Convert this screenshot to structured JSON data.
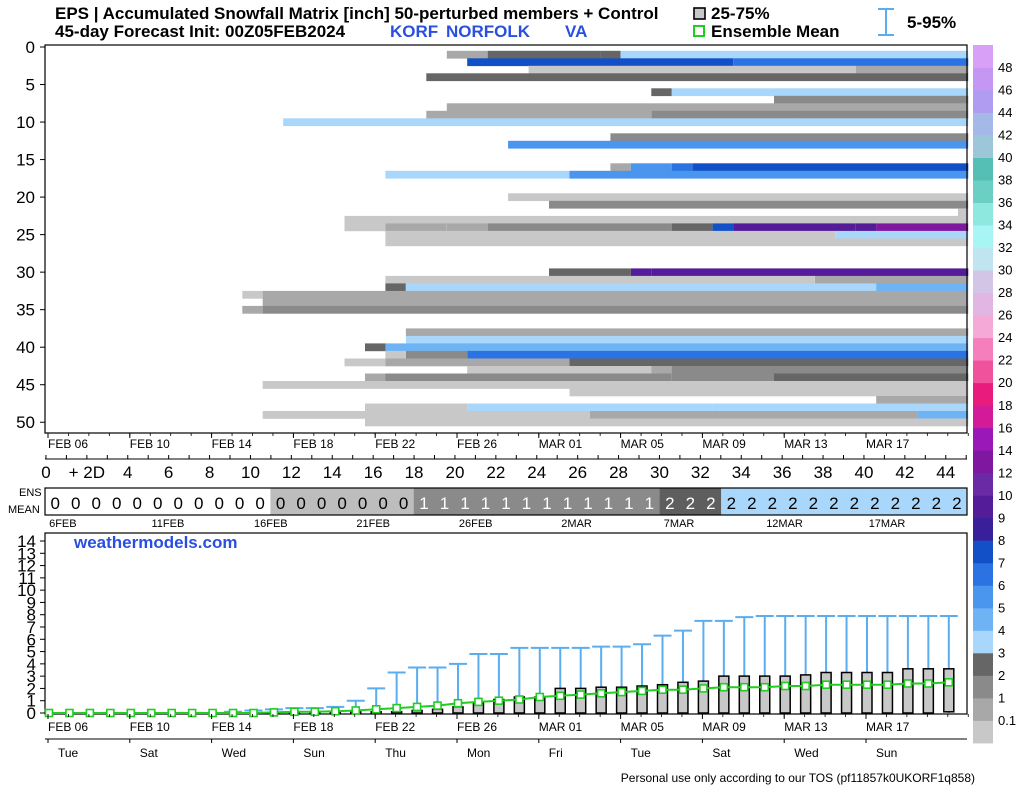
{
  "header": {
    "line1": "EPS | Accumulated Snowfall Matrix [inch]  50-perturbed members + Control",
    "line2_prefix": "45-day Forecast Init: 00Z05FEB2024",
    "station_id": "KORF",
    "station_name": "NORFOLK",
    "state": "VA",
    "legend_iqr": "25-75%",
    "legend_mean": "Ensemble Mean",
    "legend_whisker": "5-95%"
  },
  "watermark": "weathermodels.com",
  "footer": "Personal use only according to our TOS (pf11857k0UKORF1q858)",
  "colors": {
    "whisker": "#5aaef0",
    "mean": "#22cc22",
    "box": "#c8c8c8",
    "station": "#2a4fe0"
  },
  "chart_data": [
    {
      "id": "matrix",
      "type": "heatmap",
      "title": "Accumulated Snowfall Matrix [inch]",
      "ylim": [
        0,
        50
      ],
      "yticks": [
        0,
        5,
        10,
        15,
        20,
        25,
        30,
        35,
        40,
        45,
        50
      ],
      "xlim": [
        0,
        45
      ],
      "date_ticks": [
        {
          "d": 1,
          "label": "FEB 06"
        },
        {
          "d": 5,
          "label": "FEB 10"
        },
        {
          "d": 9,
          "label": "FEB 14"
        },
        {
          "d": 13,
          "label": "FEB 18"
        },
        {
          "d": 17,
          "label": "FEB 22"
        },
        {
          "d": 21,
          "label": "FEB 26"
        },
        {
          "d": 25,
          "label": "MAR 01"
        },
        {
          "d": 29,
          "label": "MAR 05"
        },
        {
          "d": 33,
          "label": "MAR 09"
        },
        {
          "d": 37,
          "label": "MAR 13"
        },
        {
          "d": 41,
          "label": "MAR 17"
        }
      ],
      "members": [
        {
          "m": 1,
          "cells": [
            [
              19.5,
              21.5,
              1.5
            ],
            [
              21.5,
              27,
              3
            ],
            [
              27,
              28,
              3.5
            ],
            [
              28,
              45,
              4.5
            ]
          ]
        },
        {
          "m": 2,
          "cells": [
            [
              20.5,
              33.5,
              8
            ],
            [
              33.5,
              45,
              7.5
            ]
          ]
        },
        {
          "m": 3,
          "cells": [
            [
              23.5,
              39.5,
              0.5
            ],
            [
              39.5,
              45,
              1.5
            ]
          ]
        },
        {
          "m": 4,
          "cells": [
            [
              18.5,
              45,
              3
            ]
          ]
        },
        {
          "m": 6,
          "cells": [
            [
              29.5,
              30.5,
              3
            ],
            [
              30.5,
              45,
              4.5
            ]
          ]
        },
        {
          "m": 7,
          "cells": [
            [
              35.5,
              45,
              2
            ]
          ]
        },
        {
          "m": 8,
          "cells": [
            [
              19.5,
              45,
              1.5
            ]
          ]
        },
        {
          "m": 9,
          "cells": [
            [
              18.5,
              29.5,
              1
            ],
            [
              29.5,
              45,
              2
            ]
          ]
        },
        {
          "m": 10,
          "cells": [
            [
              11.5,
              36.5,
              4
            ],
            [
              36.5,
              45,
              4.5
            ]
          ]
        },
        {
          "m": 12,
          "cells": [
            [
              27.5,
              45,
              2
            ]
          ]
        },
        {
          "m": 13,
          "cells": [
            [
              22.5,
              45,
              6
            ]
          ]
        },
        {
          "m": 16,
          "cells": [
            [
              27.5,
              28.5,
              1.5
            ],
            [
              28.5,
              30.5,
              6
            ],
            [
              30.5,
              31.5,
              7.5
            ],
            [
              31.5,
              45,
              8
            ]
          ]
        },
        {
          "m": 17,
          "cells": [
            [
              16.5,
              25.5,
              4.5
            ],
            [
              25.5,
              45,
              6
            ]
          ]
        },
        {
          "m": 20,
          "cells": [
            [
              22.5,
              45,
              0.5
            ]
          ]
        },
        {
          "m": 21,
          "cells": [
            [
              24.5,
              45,
              2
            ]
          ]
        },
        {
          "m": 22,
          "cells": [
            [
              44.5,
              45,
              0.5
            ]
          ]
        },
        {
          "m": 23,
          "cells": [
            [
              14.5,
              45,
              0.5
            ]
          ]
        },
        {
          "m": 24,
          "cells": [
            [
              14.5,
              16.5,
              0.5
            ],
            [
              16.5,
              19.5,
              1
            ],
            [
              19.5,
              21.5,
              1.5
            ],
            [
              21.5,
              30.5,
              2
            ],
            [
              30.5,
              32.5,
              3
            ],
            [
              32.5,
              33.5,
              8
            ],
            [
              33.5,
              39.5,
              10
            ],
            [
              39.5,
              40.5,
              11
            ],
            [
              40.5,
              45,
              14
            ]
          ]
        },
        {
          "m": 25,
          "cells": [
            [
              16.5,
              38.5,
              0.5
            ],
            [
              38.5,
              45,
              4.5
            ]
          ]
        },
        {
          "m": 26,
          "cells": [
            [
              16.5,
              45,
              0.5
            ]
          ]
        },
        {
          "m": 30,
          "cells": [
            [
              24.5,
              28.5,
              3
            ],
            [
              28.5,
              29.5,
              10
            ],
            [
              29.5,
              45,
              10
            ]
          ]
        },
        {
          "m": 31,
          "cells": [
            [
              16.5,
              37.5,
              0.5
            ],
            [
              37.5,
              45,
              1.5
            ]
          ]
        },
        {
          "m": 32,
          "cells": [
            [
              16.5,
              17.5,
              3
            ],
            [
              17.5,
              40.5,
              4.5
            ],
            [
              40.5,
              45,
              5
            ]
          ]
        },
        {
          "m": 33,
          "cells": [
            [
              9.5,
              10.5,
              0.5
            ],
            [
              10.5,
              45,
              1
            ]
          ]
        },
        {
          "m": 34,
          "cells": [
            [
              10.5,
              45,
              1
            ]
          ]
        },
        {
          "m": 35,
          "cells": [
            [
              9.5,
              10.5,
              1.5
            ],
            [
              10.5,
              45,
              2
            ]
          ]
        },
        {
          "m": 38,
          "cells": [
            [
              17.5,
              45,
              1.5
            ]
          ]
        },
        {
          "m": 39,
          "cells": [
            [
              17.5,
              45,
              4.5
            ]
          ]
        },
        {
          "m": 40,
          "cells": [
            [
              15.5,
              16.5,
              3
            ],
            [
              16.5,
              45,
              5
            ]
          ]
        },
        {
          "m": 41,
          "cells": [
            [
              16.5,
              17.5,
              0.5
            ],
            [
              17.5,
              20.5,
              2
            ],
            [
              20.5,
              45,
              7.5
            ]
          ]
        },
        {
          "m": 42,
          "cells": [
            [
              14.5,
              16.5,
              0.5
            ],
            [
              16.5,
              25.5,
              1
            ],
            [
              25.5,
              45,
              3
            ]
          ]
        },
        {
          "m": 43,
          "cells": [
            [
              20.5,
              29.5,
              0.5
            ],
            [
              29.5,
              30.5,
              1
            ],
            [
              30.5,
              45,
              2
            ]
          ]
        },
        {
          "m": 44,
          "cells": [
            [
              15.5,
              16.5,
              1.5
            ],
            [
              16.5,
              30.5,
              2
            ],
            [
              30.5,
              35.5,
              2
            ],
            [
              35.5,
              45,
              3
            ]
          ]
        },
        {
          "m": 45,
          "cells": [
            [
              10.5,
              45,
              0.5
            ]
          ]
        },
        {
          "m": 46,
          "cells": [
            [
              25.5,
              45,
              0.5
            ]
          ]
        },
        {
          "m": 47,
          "cells": [
            [
              40.5,
              45,
              1
            ]
          ]
        },
        {
          "m": 48,
          "cells": [
            [
              15.5,
              20.5,
              0.5
            ],
            [
              20.5,
              32.5,
              4
            ],
            [
              32.5,
              45,
              4.5
            ]
          ]
        },
        {
          "m": 49,
          "cells": [
            [
              10.5,
              26.5,
              0.5
            ],
            [
              26.5,
              42.5,
              1.5
            ],
            [
              42.5,
              45,
              5
            ]
          ]
        },
        {
          "m": 50,
          "cells": [
            [
              15.5,
              45,
              0.5
            ]
          ]
        }
      ]
    },
    {
      "id": "colorbar",
      "type": "legend",
      "levels": [
        0.1,
        1,
        2,
        3,
        4,
        5,
        6,
        7,
        8,
        9,
        10,
        12,
        14,
        16,
        18,
        20,
        22,
        24,
        26,
        28,
        30,
        32,
        34,
        36,
        38,
        40,
        42,
        44,
        46,
        48
      ],
      "labels": [
        "0.1",
        "1",
        "2",
        "3",
        "4",
        "5",
        "6",
        "7",
        "8",
        "9",
        "10",
        "12",
        "14",
        "16",
        "18",
        "20",
        "22",
        "24",
        "26",
        "28",
        "30",
        "32",
        "34",
        "36",
        "38",
        "40",
        "42",
        "44",
        "46",
        "48"
      ],
      "colors": [
        "#c8c8c8",
        "#a8a8a8",
        "#8a8a8a",
        "#666666",
        "#a9d7fb",
        "#6eb4f5",
        "#4a95ee",
        "#2b73e2",
        "#1250c8",
        "#3a1f9a",
        "#541c99",
        "#6a2aa6",
        "#7e18a0",
        "#9a17b8",
        "#d31a98",
        "#e91c7d",
        "#f0539c",
        "#f57fbc",
        "#f5a9d6",
        "#e2b6e2",
        "#d2c5e6",
        "#bfe6f0",
        "#a8f5f5",
        "#8ee8e0",
        "#6ccfc6",
        "#55bfb6",
        "#9bc7d8",
        "#a4b9e8",
        "#b09cf0",
        "#c696f3",
        "#d8a0f6"
      ]
    },
    {
      "id": "ens-mean-row",
      "type": "table",
      "label_top": "ENS",
      "label_bottom": "MEAN",
      "values": [
        0,
        0,
        0,
        0,
        0,
        0,
        0,
        0,
        0,
        0,
        0,
        0,
        0,
        0,
        0,
        0,
        0,
        0,
        1,
        1,
        1,
        1,
        1,
        1,
        1,
        1,
        1,
        1,
        1,
        1,
        2,
        2,
        2,
        2,
        2,
        2,
        2,
        2,
        2,
        2,
        2,
        2,
        2,
        2,
        2
      ],
      "day_ticks": [
        {
          "d": 0,
          "label": "0"
        },
        {
          "d": 2,
          "label": "+ 2D"
        },
        {
          "d": 4,
          "label": "4"
        },
        {
          "d": 6,
          "label": "6"
        },
        {
          "d": 8,
          "label": "8"
        },
        {
          "d": 10,
          "label": "10"
        },
        {
          "d": 12,
          "label": "12"
        },
        {
          "d": 14,
          "label": "14"
        },
        {
          "d": 16,
          "label": "16"
        },
        {
          "d": 18,
          "label": "18"
        },
        {
          "d": 20,
          "label": "20"
        },
        {
          "d": 22,
          "label": "22"
        },
        {
          "d": 24,
          "label": "24"
        },
        {
          "d": 26,
          "label": "26"
        },
        {
          "d": 28,
          "label": "28"
        },
        {
          "d": 30,
          "label": "30"
        },
        {
          "d": 32,
          "label": "32"
        },
        {
          "d": 34,
          "label": "34"
        },
        {
          "d": 36,
          "label": "36"
        },
        {
          "d": 38,
          "label": "38"
        },
        {
          "d": 40,
          "label": "40"
        },
        {
          "d": 42,
          "label": "42"
        },
        {
          "d": 44,
          "label": "44"
        }
      ],
      "date_labels": [
        {
          "d": 1,
          "label": "6FEB"
        },
        {
          "d": 6,
          "label": "11FEB"
        },
        {
          "d": 11,
          "label": "16FEB"
        },
        {
          "d": 16,
          "label": "21FEB"
        },
        {
          "d": 21,
          "label": "26FEB"
        },
        {
          "d": 26,
          "label": "2MAR"
        },
        {
          "d": 31,
          "label": "7MAR"
        },
        {
          "d": 36,
          "label": "12MAR"
        },
        {
          "d": 41,
          "label": "17MAR"
        }
      ]
    },
    {
      "id": "boxplot",
      "type": "bar",
      "ylim": [
        0,
        14
      ],
      "yticks": [
        0,
        1,
        2,
        3,
        4,
        5,
        6,
        7,
        8,
        9,
        10,
        11,
        12,
        13,
        14
      ],
      "x": [
        1,
        2,
        3,
        4,
        5,
        6,
        7,
        8,
        9,
        10,
        11,
        12,
        13,
        14,
        15,
        16,
        17,
        18,
        19,
        20,
        21,
        22,
        23,
        24,
        25,
        26,
        27,
        28,
        29,
        30,
        31,
        32,
        33,
        34,
        35,
        36,
        37,
        38,
        39,
        40,
        41,
        42,
        43,
        44,
        45
      ],
      "q25": [
        0,
        0,
        0,
        0,
        0,
        0,
        0,
        0,
        0,
        0,
        0,
        0,
        0,
        0,
        0,
        0,
        0,
        0,
        0,
        0,
        0,
        0,
        0,
        0,
        0,
        0,
        0,
        0,
        0,
        0,
        0,
        0,
        0,
        0,
        0,
        0,
        0,
        0,
        0,
        0,
        0,
        0,
        0,
        0,
        0.1
      ],
      "q75": [
        0,
        0,
        0,
        0,
        0,
        0,
        0,
        0,
        0,
        0,
        0,
        0.05,
        0.1,
        0.1,
        0.1,
        0.1,
        0.1,
        0.1,
        0.2,
        0.3,
        0.5,
        0.8,
        1.1,
        1.3,
        1.3,
        2.0,
        2.0,
        2.1,
        2.1,
        2.2,
        2.3,
        2.5,
        2.6,
        3.0,
        3.0,
        3.0,
        3.0,
        3.1,
        3.3,
        3.3,
        3.3,
        3.3,
        3.6,
        3.6,
        3.6
      ],
      "p95": [
        0,
        0,
        0,
        0,
        0,
        0,
        0,
        0,
        0,
        0.1,
        0.2,
        0.3,
        0.4,
        0.4,
        0.5,
        1.0,
        2.0,
        3.3,
        3.7,
        3.7,
        4.0,
        4.8,
        4.8,
        5.3,
        5.3,
        5.3,
        5.3,
        5.4,
        5.4,
        5.6,
        6.3,
        6.7,
        7.5,
        7.5,
        7.8,
        7.9,
        7.9,
        7.9,
        7.9,
        7.9,
        7.9,
        7.9,
        7.9,
        7.9,
        7.9
      ],
      "mean": [
        0,
        0,
        0,
        0,
        0,
        0,
        0,
        0,
        0,
        0,
        0,
        0.05,
        0.1,
        0.1,
        0.15,
        0.2,
        0.3,
        0.4,
        0.5,
        0.6,
        0.8,
        0.9,
        1.0,
        1.1,
        1.3,
        1.4,
        1.5,
        1.6,
        1.7,
        1.8,
        1.9,
        1.9,
        2.0,
        2.1,
        2.1,
        2.1,
        2.2,
        2.2,
        2.3,
        2.3,
        2.3,
        2.3,
        2.4,
        2.4,
        2.5
      ],
      "date_ticks": [
        {
          "d": 1,
          "label": "FEB 06",
          "dow": "Tue"
        },
        {
          "d": 5,
          "label": "FEB 10",
          "dow": "Sat"
        },
        {
          "d": 9,
          "label": "FEB 14",
          "dow": "Wed"
        },
        {
          "d": 13,
          "label": "FEB 18",
          "dow": "Sun"
        },
        {
          "d": 17,
          "label": "FEB 22",
          "dow": "Thu"
        },
        {
          "d": 21,
          "label": "FEB 26",
          "dow": "Mon"
        },
        {
          "d": 25,
          "label": "MAR 01",
          "dow": "Fri"
        },
        {
          "d": 29,
          "label": "MAR 05",
          "dow": "Tue"
        },
        {
          "d": 33,
          "label": "MAR 09",
          "dow": "Sat"
        },
        {
          "d": 37,
          "label": "MAR 13",
          "dow": "Wed"
        },
        {
          "d": 41,
          "label": "MAR 17",
          "dow": "Sun"
        }
      ]
    }
  ]
}
